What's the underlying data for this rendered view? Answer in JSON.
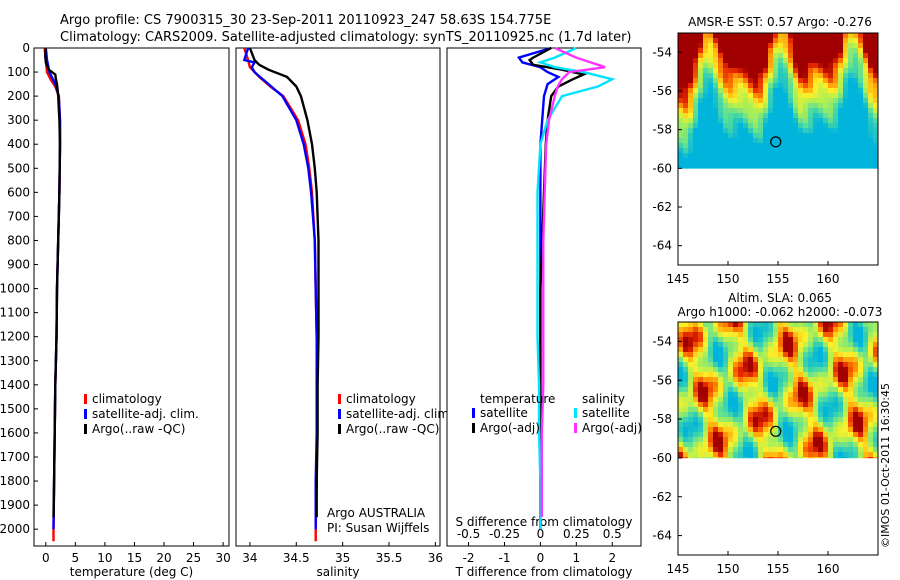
{
  "header": {
    "line1": "Argo profile: CS 7900315_30 23-Sep-2011 20110923_247 58.63S 154.775E",
    "line2": "Climatology: CARS2009. Satellite-adjusted climatology: synTS_20110925.nc (1.7d later)"
  },
  "colors": {
    "climatology": "#ff0000",
    "satellite": "#0000ff",
    "argo": "#000000",
    "sal_satellite": "#00e5ff",
    "sal_argo": "#ff33ff"
  },
  "credit": "©IMOS 01-Oct-2011 16:30:45",
  "chart_data": [
    {
      "type": "line",
      "id": "temperature",
      "xlabel": "temperature (deg C)",
      "xlim": [
        -2,
        31
      ],
      "xticks": [
        "0",
        "5",
        "10",
        "15",
        "20",
        "25",
        "30"
      ],
      "ylim": [
        2070,
        0
      ],
      "yticks": [
        "0",
        "100",
        "200",
        "300",
        "400",
        "500",
        "600",
        "700",
        "800",
        "900",
        "1000",
        "1100",
        "1200",
        "1300",
        "1400",
        "1500",
        "1600",
        "1700",
        "1800",
        "1900",
        "2000"
      ],
      "legend": [
        "climatology",
        "satellite-adj. clim.",
        "Argo(..raw -QC)"
      ],
      "series": [
        {
          "name": "climatology",
          "depth": [
            0,
            50,
            100,
            130,
            160,
            200,
            300,
            400,
            600,
            800,
            1000,
            1200,
            1400,
            1600,
            1800,
            2000,
            2050
          ],
          "values": [
            -0.2,
            0.0,
            0.2,
            0.8,
            1.6,
            2.2,
            2.4,
            2.4,
            2.3,
            2.1,
            1.9,
            1.8,
            1.6,
            1.5,
            1.4,
            1.3,
            1.3
          ]
        },
        {
          "name": "satellite-adj. clim.",
          "depth": [
            0,
            50,
            100,
            150,
            200,
            300,
            400,
            600,
            800,
            1000,
            1200,
            1400,
            1600,
            1800,
            2000
          ],
          "values": [
            0.0,
            0.2,
            0.6,
            1.6,
            2.2,
            2.4,
            2.4,
            2.3,
            2.1,
            1.9,
            1.8,
            1.6,
            1.5,
            1.4,
            1.3
          ]
        },
        {
          "name": "Argo(..raw -QC)",
          "depth": [
            0,
            30,
            60,
            90,
            110,
            130,
            150,
            200,
            300,
            400,
            600,
            800,
            1000,
            1200,
            1400,
            1600,
            1800,
            1950
          ],
          "values": [
            0.0,
            -0.1,
            0.0,
            0.5,
            1.6,
            1.7,
            1.9,
            2.1,
            2.3,
            2.4,
            2.3,
            2.1,
            1.9,
            1.8,
            1.6,
            1.5,
            1.4,
            1.3
          ]
        }
      ]
    },
    {
      "type": "line",
      "id": "salinity",
      "xlabel": "salinity",
      "xlim": [
        33.85,
        36.05
      ],
      "xticks": [
        "34",
        "34.5",
        "35",
        "35.5",
        "36"
      ],
      "ylim": [
        2070,
        0
      ],
      "legend": [
        "climatology",
        "satellite-adj. clim.",
        "Argo(..raw -QC)"
      ],
      "annotation": [
        "Argo AUSTRALIA",
        "PI: Susan Wijffels"
      ],
      "series": [
        {
          "name": "climatology",
          "depth": [
            0,
            50,
            80,
            120,
            160,
            200,
            300,
            400,
            500,
            600,
            800,
            1000,
            1200,
            1400,
            1600,
            1800,
            2000,
            2050
          ],
          "values": [
            33.94,
            33.98,
            34.0,
            34.1,
            34.22,
            34.36,
            34.52,
            34.6,
            34.64,
            34.67,
            34.7,
            34.71,
            34.72,
            34.72,
            34.72,
            34.72,
            34.71,
            34.71
          ]
        },
        {
          "name": "satellite-adj. clim.",
          "depth": [
            0,
            50,
            60,
            80,
            100,
            150,
            200,
            300,
            400,
            500,
            600,
            800,
            1000,
            1200,
            1400,
            1600,
            1800,
            2000
          ],
          "values": [
            33.98,
            33.94,
            34.05,
            34.02,
            34.05,
            34.2,
            34.35,
            34.5,
            34.58,
            34.63,
            34.66,
            34.7,
            34.71,
            34.72,
            34.72,
            34.72,
            34.71,
            34.71
          ]
        },
        {
          "name": "Argo(..raw -QC)",
          "depth": [
            0,
            50,
            70,
            90,
            120,
            160,
            200,
            300,
            400,
            500,
            600,
            800,
            1000,
            1200,
            1400,
            1600,
            1800,
            1950
          ],
          "values": [
            34.0,
            34.05,
            34.1,
            34.2,
            34.4,
            34.5,
            34.55,
            34.62,
            34.67,
            34.7,
            34.72,
            34.74,
            34.74,
            34.74,
            34.73,
            34.73,
            34.72,
            34.72
          ]
        }
      ]
    },
    {
      "type": "line",
      "id": "difference",
      "xlabel": "T difference from climatology",
      "toplabel": "S difference from climatology",
      "xlim": [
        -2.6,
        2.8
      ],
      "xticks": [
        "-2",
        "-1",
        "0",
        "1",
        "2"
      ],
      "sticks": [
        "-0.5",
        "-0.25",
        "0",
        "0.25",
        "0.5"
      ],
      "ylim": [
        2070,
        0
      ],
      "legend": {
        "temperature": [
          "satellite",
          "Argo(-adj)"
        ],
        "salinity": [
          "satellite",
          "Argo(-adj)"
        ],
        "headers": [
          "temperature",
          "salinity"
        ]
      },
      "series": [
        {
          "name": "satellite",
          "quantity": "temperature",
          "depth": [
            0,
            40,
            60,
            80,
            100,
            120,
            150,
            200,
            300,
            400,
            600,
            800,
            1000,
            1200,
            1400,
            1600,
            1800,
            2000
          ],
          "values": [
            0.3,
            -0.6,
            -0.5,
            0.0,
            0.2,
            0.5,
            0.2,
            0.1,
            0.05,
            0.0,
            0.0,
            0.0,
            0.0,
            0.0,
            0.0,
            0.0,
            0.0,
            0.0
          ]
        },
        {
          "name": "Argo(-adj)",
          "quantity": "temperature",
          "depth": [
            0,
            40,
            50,
            70,
            90,
            110,
            130,
            160,
            200,
            300,
            400,
            600,
            800,
            1000,
            1200,
            1400,
            1600,
            1800,
            1950
          ],
          "values": [
            0.3,
            -0.2,
            -0.3,
            -0.2,
            0.6,
            1.2,
            0.9,
            0.5,
            0.3,
            0.2,
            0.15,
            0.1,
            0.05,
            0.0,
            0.0,
            0.0,
            0.0,
            0.0,
            0.0
          ]
        },
        {
          "name": "satellite",
          "quantity": "salinity",
          "depth": [
            0,
            40,
            60,
            80,
            100,
            130,
            160,
            200,
            300,
            400,
            600,
            800,
            1000,
            1200,
            1400,
            1600,
            1800,
            2000
          ],
          "values": [
            0.25,
            0.1,
            0.0,
            0.1,
            0.3,
            0.5,
            0.4,
            0.15,
            0.05,
            0.0,
            -0.02,
            -0.02,
            -0.02,
            -0.02,
            -0.01,
            -0.01,
            0.0,
            0.0
          ]
        },
        {
          "name": "Argo(-adj)",
          "quantity": "salinity",
          "depth": [
            0,
            40,
            60,
            80,
            100,
            130,
            160,
            200,
            300,
            400,
            600,
            800,
            1000,
            1200,
            1400,
            1600,
            1800,
            1950
          ],
          "values": [
            0.1,
            0.25,
            0.35,
            0.45,
            0.2,
            0.15,
            0.12,
            0.1,
            0.06,
            0.04,
            0.03,
            0.02,
            0.02,
            0.02,
            0.02,
            0.01,
            0.01,
            0.01
          ]
        }
      ]
    },
    {
      "type": "heatmap",
      "id": "sst-map",
      "title": "AMSR-E SST: 0.57 Argo: -0.276",
      "xlim": [
        145,
        165
      ],
      "ylim": [
        -65,
        -53
      ],
      "xticks": [
        "145",
        "150",
        "155",
        "160"
      ],
      "yticks": [
        "-54",
        "-56",
        "-58",
        "-60",
        "-62",
        "-64"
      ],
      "data_lat_min": -60,
      "argo_position": {
        "lon": 154.775,
        "lat": -58.63
      }
    },
    {
      "type": "heatmap",
      "id": "sla-map",
      "title": "Altim. SLA: 0.065",
      "subtitle": "Argo h1000: -0.062 h2000: -0.073",
      "xlim": [
        145,
        165
      ],
      "ylim": [
        -65,
        -53
      ],
      "xticks": [
        "145",
        "150",
        "155",
        "160"
      ],
      "yticks": [
        "-54",
        "-56",
        "-58",
        "-60",
        "-62",
        "-64"
      ],
      "data_lat_min": -60,
      "argo_position": {
        "lon": 154.775,
        "lat": -58.63
      }
    }
  ]
}
